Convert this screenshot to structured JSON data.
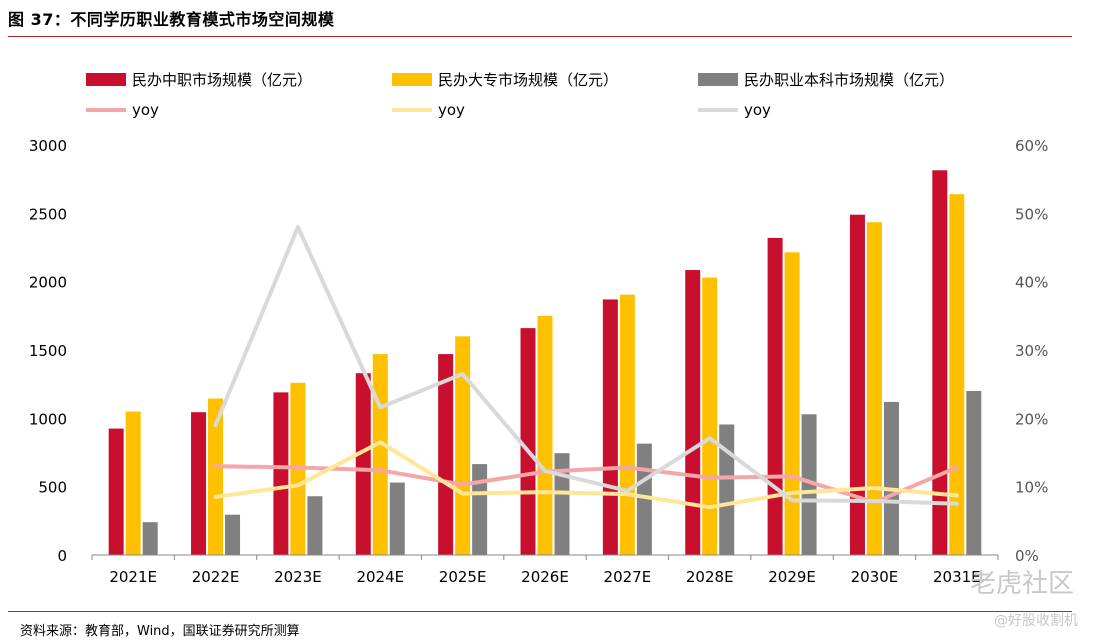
{
  "figure": {
    "title": "图 37：不同学历职业教育模式市场空间规模",
    "source": "资料来源：教育部，Wind，国联证券研究所测算",
    "watermark_main": "老虎社区",
    "watermark_sub": "@好股收割机"
  },
  "chart_data": {
    "type": "bar",
    "categories": [
      "2021E",
      "2022E",
      "2023E",
      "2024E",
      "2025E",
      "2026E",
      "2027E",
      "2028E",
      "2029E",
      "2030E",
      "2031E"
    ],
    "ylim": [
      0,
      3000
    ],
    "y_ticks": [
      "0",
      "500",
      "1000",
      "1500",
      "2000",
      "2500",
      "3000"
    ],
    "y2lim": [
      0,
      0.6
    ],
    "y2_ticks": [
      "0%",
      "10%",
      "20%",
      "30%",
      "40%",
      "50%",
      "60%"
    ],
    "grid": false,
    "legend_position": "top",
    "series": [
      {
        "name": "民办中职市场规模（亿元）",
        "type": "bar",
        "color": "#c8102e",
        "values": [
          925,
          1045,
          1190,
          1330,
          1470,
          1660,
          1870,
          2085,
          2320,
          2490,
          2815
        ]
      },
      {
        "name": "民办大专市场规模（亿元）",
        "type": "bar",
        "color": "#ffc000",
        "values": [
          1050,
          1145,
          1260,
          1470,
          1600,
          1750,
          1905,
          2030,
          2215,
          2435,
          2640
        ]
      },
      {
        "name": "民办职业本科市场规模（亿元）",
        "type": "bar",
        "color": "#808080",
        "values": [
          240,
          295,
          430,
          530,
          665,
          745,
          815,
          955,
          1030,
          1120,
          1200
        ]
      },
      {
        "name": "yoy",
        "type": "line",
        "axis": "right",
        "color": "#f4a7a9",
        "values": [
          null,
          0.13,
          0.128,
          0.124,
          0.103,
          0.122,
          0.128,
          0.113,
          0.115,
          0.077,
          0.128
        ]
      },
      {
        "name": "yoy",
        "type": "line",
        "axis": "right",
        "color": "#ffe699",
        "values": [
          null,
          0.085,
          0.102,
          0.165,
          0.09,
          0.092,
          0.089,
          0.07,
          0.091,
          0.098,
          0.087
        ]
      },
      {
        "name": "yoy",
        "type": "line",
        "axis": "right",
        "color": "#d9d9d9",
        "values": [
          null,
          0.19,
          0.48,
          0.216,
          0.265,
          0.123,
          0.094,
          0.171,
          0.08,
          0.079,
          0.075
        ]
      }
    ]
  }
}
